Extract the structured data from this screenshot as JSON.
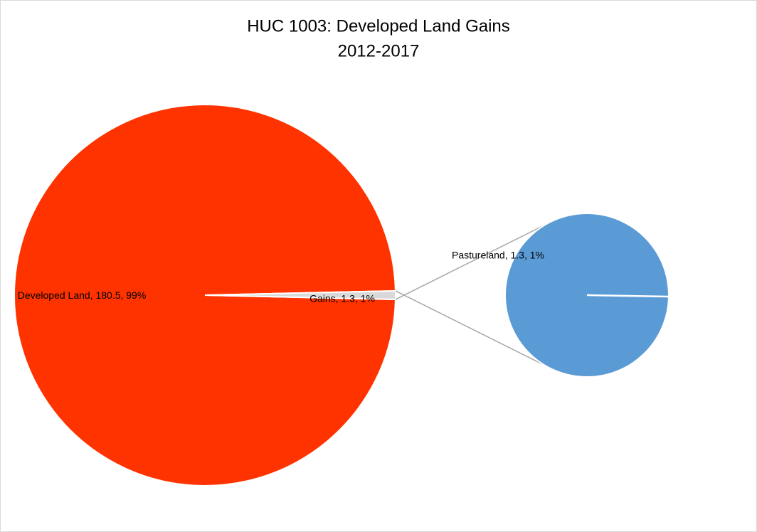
{
  "chart_data": {
    "type": "pie-of-pie",
    "title": "HUC 1003: Developed Land Gains",
    "subtitle": "2012-2017",
    "values": [
      180.5,
      1.3
    ],
    "value_labels": [
      "Developed Land, 180.5, 99%",
      "Gains, 1.3, 1%"
    ],
    "colors": [
      "#ff3300",
      "#d9d9d9"
    ],
    "secondary": {
      "values": [
        1.3
      ],
      "value_labels": [
        "Pastureland, 1.3, 1%"
      ],
      "colors": [
        "#5b9bd5"
      ]
    }
  }
}
